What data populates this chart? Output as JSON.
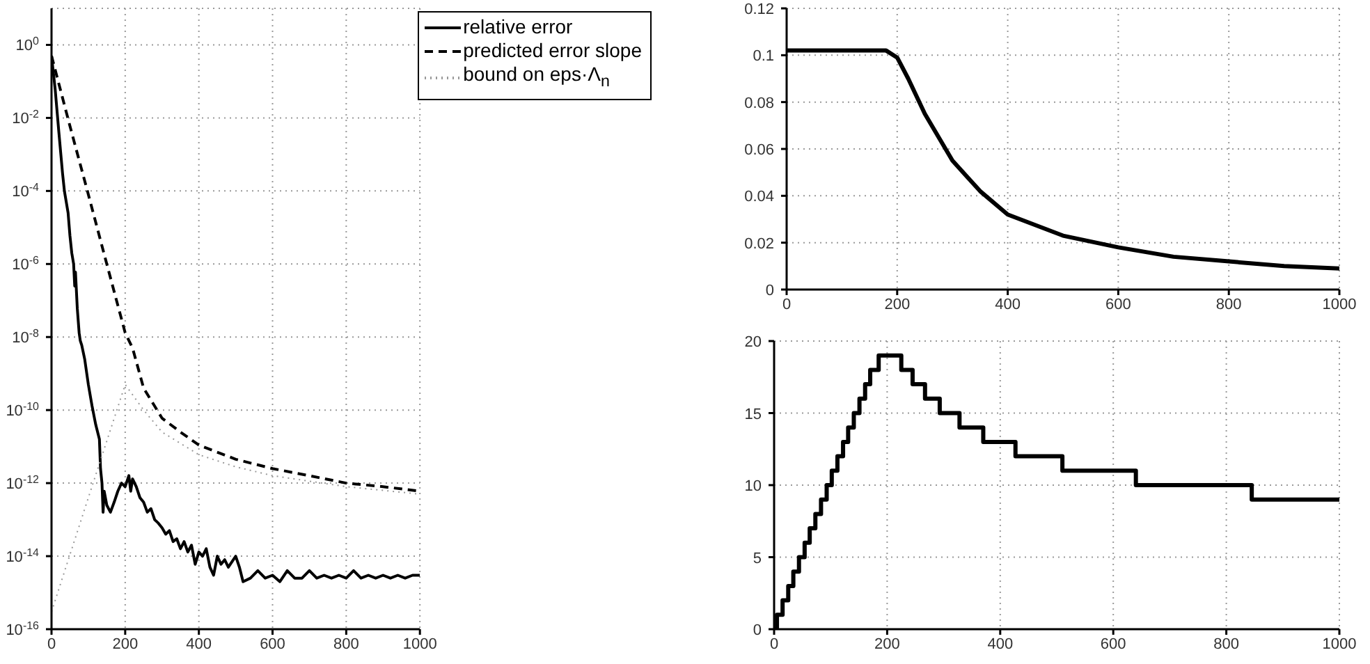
{
  "chart_data": [
    {
      "type": "line",
      "log": "y",
      "grid": true,
      "legend": "top right",
      "xlim": [
        0,
        1000
      ],
      "xticks": [
        0,
        200,
        400,
        600,
        800,
        1000
      ],
      "ylim": [
        1e-16,
        10
      ],
      "yticks": [
        {
          "value": 1,
          "label": "10$^{0}$"
        },
        {
          "value": 0.01,
          "label": "10$^{-2}$"
        },
        {
          "value": 0.0001,
          "label": "10$^{-4}$"
        },
        {
          "value": 1e-06,
          "label": "10$^{-6}$"
        },
        {
          "value": 1e-08,
          "label": "10$^{-8}$"
        },
        {
          "value": 1e-10,
          "label": "10$^{-10}$"
        },
        {
          "value": 1e-12,
          "label": "10$^{-12}$"
        },
        {
          "value": 1e-14,
          "label": "10$^{-14}$"
        },
        {
          "value": 1e-16,
          "label": "10$^{-16}$"
        }
      ],
      "series": [
        {
          "name": "relative error",
          "color": "#000000",
          "line_style": "solid",
          "x": [
            0,
            10,
            20,
            30,
            35,
            40,
            45,
            50,
            55,
            60,
            63,
            65,
            70,
            75,
            78,
            82,
            90,
            100,
            110,
            120,
            130,
            133,
            137,
            140,
            143,
            150,
            160,
            170,
            180,
            190,
            200,
            210,
            215,
            220,
            230,
            240,
            250,
            260,
            270,
            280,
            290,
            300,
            310,
            320,
            330,
            340,
            350,
            360,
            370,
            380,
            390,
            400,
            410,
            420,
            430,
            440,
            450,
            460,
            470,
            480,
            500,
            510,
            520,
            540,
            560,
            580,
            600,
            620,
            640,
            660,
            680,
            700,
            720,
            740,
            760,
            780,
            800,
            820,
            840,
            860,
            880,
            900,
            920,
            940,
            960,
            980,
            1000
          ],
          "values": [
            0.5,
            0.06,
            0.004,
            0.0003,
            0.0001,
            5e-05,
            2.5e-05,
            6e-06,
            2e-06,
            1e-06,
            2.5e-07,
            6e-07,
            6e-08,
            1.3e-08,
            8e-09,
            6e-09,
            2.5e-09,
            5e-10,
            1.3e-10,
            4e-11,
            1.6e-11,
            2.5e-12,
            1e-12,
            1.6e-13,
            6e-13,
            2.5e-13,
            1.6e-13,
            3e-13,
            6e-13,
            1e-12,
            8e-13,
            1.6e-12,
            6e-13,
            1.3e-12,
            8e-13,
            4e-13,
            3e-13,
            1.6e-13,
            2e-13,
            1e-13,
            8e-14,
            6e-14,
            4e-14,
            5e-14,
            2.5e-14,
            3e-14,
            1.6e-14,
            2.5e-14,
            1.3e-14,
            2e-14,
            6e-15,
            1.3e-14,
            1e-14,
            1.6e-14,
            5e-15,
            3e-15,
            1e-14,
            6e-15,
            8e-15,
            5e-15,
            1e-14,
            5e-15,
            2e-15,
            2.5e-15,
            4e-15,
            2.5e-15,
            3e-15,
            2e-15,
            4e-15,
            2.5e-15,
            2.5e-15,
            4e-15,
            2.5e-15,
            3e-15,
            2.5e-15,
            3e-15,
            2.5e-15,
            4e-15,
            2.5e-15,
            3e-15,
            2.5e-15,
            3e-15,
            2.5e-15,
            3e-15,
            2.5e-15,
            3e-15,
            3e-15
          ]
        },
        {
          "name": "predicted error slope",
          "color": "#000000",
          "line_style": "dashed",
          "x": [
            0,
            50,
            100,
            150,
            200,
            220,
            250,
            300,
            350,
            400,
            500,
            600,
            700,
            800,
            900,
            1000
          ],
          "values": [
            0.5,
            0.006,
            8e-05,
            1e-06,
            1.3e-08,
            5e-09,
            4e-10,
            6e-11,
            2.5e-11,
            1.1e-11,
            4.5e-12,
            2.5e-12,
            1.6e-12,
            1e-12,
            8e-13,
            6e-13
          ]
        },
        {
          "name": "bound on eps·Λ$_{n}$",
          "color": "#999999",
          "line_style": "dotted",
          "x": [
            0,
            100,
            200,
            250,
            300,
            400,
            500,
            600,
            800,
            1000
          ],
          "values": [
            3e-16,
            4e-13,
            5e-10,
            1e-10,
            2.5e-11,
            6e-12,
            2.8e-12,
            1.6e-12,
            8e-13,
            5e-13
          ]
        }
      ]
    },
    {
      "type": "line",
      "grid": true,
      "xlim": [
        0,
        1000
      ],
      "xticks": [
        0,
        200,
        400,
        600,
        800,
        1000
      ],
      "ylim": [
        0,
        0.12
      ],
      "yticks": [
        0,
        0.02,
        0.04,
        0.06,
        0.08,
        0.1,
        0.12
      ],
      "color": "#000000",
      "x": [
        0,
        50,
        100,
        150,
        180,
        200,
        220,
        250,
        300,
        350,
        400,
        500,
        600,
        700,
        800,
        900,
        1000
      ],
      "values": [
        0.102,
        0.102,
        0.102,
        0.102,
        0.102,
        0.099,
        0.09,
        0.075,
        0.055,
        0.042,
        0.032,
        0.023,
        0.018,
        0.014,
        0.012,
        0.01,
        0.009
      ]
    },
    {
      "type": "step",
      "grid": true,
      "xlim": [
        0,
        1000
      ],
      "xticks": [
        0,
        200,
        400,
        600,
        800,
        1000
      ],
      "ylim": [
        0,
        20
      ],
      "yticks": [
        0,
        5,
        10,
        15,
        20
      ],
      "color": "#000000",
      "x": [
        0,
        5,
        15,
        25,
        34,
        44,
        54,
        63,
        73,
        83,
        93,
        102,
        112,
        122,
        131,
        141,
        151,
        161,
        170,
        185,
        225,
        245,
        267,
        293,
        328,
        370,
        427,
        510,
        640,
        845,
        1000
      ],
      "values": [
        0,
        1,
        2,
        3,
        4,
        5,
        6,
        7,
        8,
        9,
        10,
        11,
        12,
        13,
        14,
        15,
        16,
        17,
        18,
        19,
        18,
        17,
        16,
        15,
        14,
        13,
        12,
        11,
        10,
        9,
        9
      ]
    }
  ]
}
